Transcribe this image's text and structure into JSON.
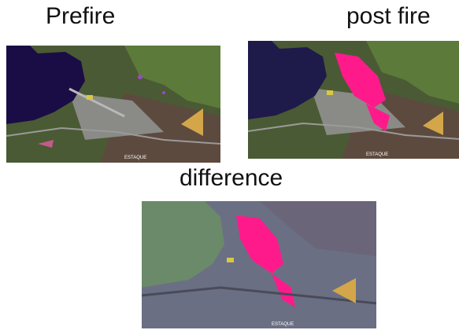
{
  "labels": {
    "prefire": "Prefire",
    "postfire": "post fire",
    "difference": "difference"
  },
  "map_text": {
    "place": "ESTAQUE",
    "marker": "fire-location-triangle"
  },
  "colors": {
    "water_pre": "#1a0d45",
    "burn_scar": "#ff1a8c",
    "marker": "#d4a64a",
    "diff_background": "#6b6f83"
  }
}
